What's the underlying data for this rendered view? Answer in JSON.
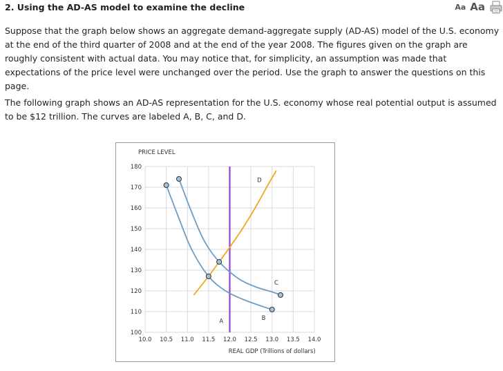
{
  "question": {
    "heading": "2. Using the AD-AS model to examine the decline",
    "font_small_label": "Aa",
    "font_large_label": "Aa",
    "print_icon": "print-icon"
  },
  "paragraphs": {
    "p1": "Suppose that the graph below shows an aggregate demand-aggregate supply (AD-AS) model of the U.S. economy at the end of the third quarter of 2008 and at the end of the year 2008. The figures given on the graph are roughly consistent with actual data. You may notice that, for simplicity, an assumption was made that expectations of the price level were unchanged over the period. Use the graph to answer the questions on this page.",
    "p2": "The following graph shows an AD-AS representation for the U.S. economy whose real potential output is assumed to be $12 trillion. The curves are labeled A, B, C, and D."
  },
  "chart_data": {
    "type": "line",
    "ylabel": "PRICE LEVEL",
    "xlabel": "REAL GDP (Trillions of dollars)",
    "xlim": [
      10.0,
      14.0
    ],
    "ylim": [
      100,
      180
    ],
    "x_ticks": [
      "10.0",
      "10.5",
      "11.0",
      "11.5",
      "12.0",
      "12.5",
      "13.0",
      "13.5",
      "14.0"
    ],
    "y_ticks": [
      "100",
      "110",
      "120",
      "130",
      "140",
      "150",
      "160",
      "170",
      "180"
    ],
    "grid": true,
    "colors": {
      "demand": "#6c9dc6",
      "supply": "#f5a623",
      "potential": "#9b3fcf",
      "handle_fill": "#9ec3e0",
      "handle_stroke": "#333333"
    },
    "series": [
      {
        "name": "A",
        "kind": "vertical",
        "x": 12.0,
        "y_range": [
          100,
          180
        ],
        "label_at": [
          11.8,
          104.5
        ]
      },
      {
        "name": "B",
        "kind": "curve",
        "points": [
          [
            10.5,
            171
          ],
          [
            10.8,
            155
          ],
          [
            11.1,
            140
          ],
          [
            11.5,
            127
          ],
          [
            11.9,
            120
          ],
          [
            12.3,
            116
          ],
          [
            12.7,
            113
          ],
          [
            13.0,
            111
          ]
        ],
        "endpoints": [
          [
            10.5,
            171
          ],
          [
            13.0,
            111
          ]
        ],
        "label_at": [
          12.8,
          106
        ]
      },
      {
        "name": "C",
        "kind": "curve",
        "points": [
          [
            10.8,
            174
          ],
          [
            11.1,
            158
          ],
          [
            11.4,
            144
          ],
          [
            11.75,
            134
          ],
          [
            12.2,
            126
          ],
          [
            12.6,
            122
          ],
          [
            13.0,
            119.5
          ],
          [
            13.2,
            118
          ]
        ],
        "endpoints": [
          [
            10.8,
            174
          ],
          [
            13.2,
            118
          ]
        ],
        "label_at": [
          13.1,
          123
        ]
      },
      {
        "name": "D",
        "kind": "curve",
        "points": [
          [
            11.15,
            118
          ],
          [
            11.5,
            127
          ],
          [
            11.75,
            134
          ],
          [
            12.0,
            141
          ],
          [
            12.3,
            150
          ],
          [
            12.6,
            160
          ],
          [
            12.9,
            171
          ],
          [
            13.1,
            178
          ]
        ],
        "label_at": [
          12.7,
          172.5
        ]
      }
    ],
    "intersection_points": [
      [
        11.5,
        127
      ],
      [
        11.75,
        134
      ]
    ]
  }
}
